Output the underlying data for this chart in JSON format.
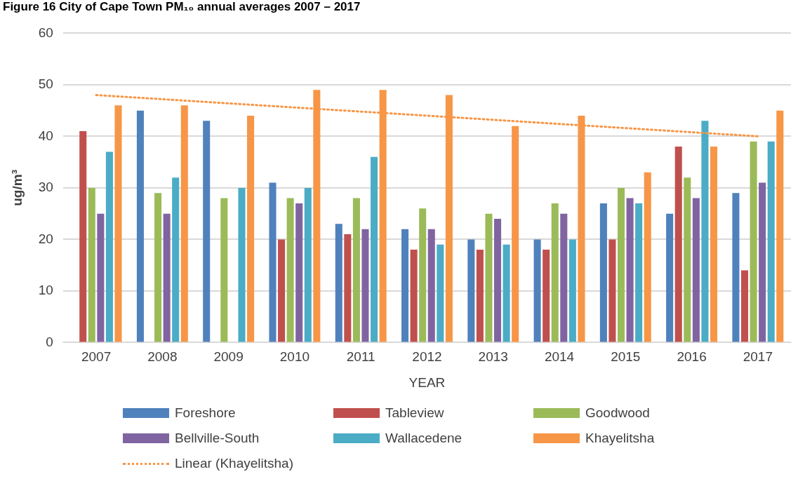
{
  "chart_data": {
    "type": "bar",
    "title": "Figure 16 City of Cape Town PM₁₀ annual averages 2007 – 2017",
    "xlabel": "YEAR",
    "ylabel": "ug/m³",
    "categories": [
      "2007",
      "2008",
      "2009",
      "2010",
      "2011",
      "2012",
      "2013",
      "2014",
      "2015",
      "2016",
      "2017"
    ],
    "series": [
      {
        "name": "Foreshore",
        "color": "#4f81bd",
        "values": [
          null,
          45,
          43,
          31,
          23,
          22,
          20,
          20,
          27,
          25,
          29
        ]
      },
      {
        "name": "Tableview",
        "color": "#c0504d",
        "values": [
          41,
          null,
          null,
          20,
          21,
          18,
          18,
          18,
          20,
          38,
          14
        ]
      },
      {
        "name": "Goodwood",
        "color": "#9bbb59",
        "values": [
          30,
          29,
          28,
          28,
          28,
          26,
          25,
          27,
          30,
          32,
          39
        ]
      },
      {
        "name": "Bellville-South",
        "color": "#8064a2",
        "values": [
          25,
          25,
          null,
          27,
          22,
          22,
          24,
          25,
          28,
          28,
          31
        ]
      },
      {
        "name": "Wallacedene",
        "color": "#4bacc6",
        "values": [
          37,
          32,
          30,
          30,
          36,
          19,
          19,
          20,
          27,
          43,
          39
        ]
      },
      {
        "name": "Khayelitsha",
        "color": "#f79646",
        "values": [
          46,
          46,
          44,
          49,
          49,
          48,
          42,
          44,
          33,
          38,
          45
        ]
      },
      {
        "name": "Linear (Khayelitsha)",
        "type": "line",
        "color": "#f79646",
        "line_style": "dotted",
        "values": [
          48,
          47.2,
          46.4,
          45.6,
          44.8,
          44,
          43.2,
          42.4,
          41.6,
          40.8,
          40
        ]
      }
    ],
    "ylim": [
      0,
      60
    ],
    "yticks": [
      0,
      10,
      20,
      30,
      40,
      50,
      60
    ],
    "grid": "y",
    "legend": "bottom"
  }
}
